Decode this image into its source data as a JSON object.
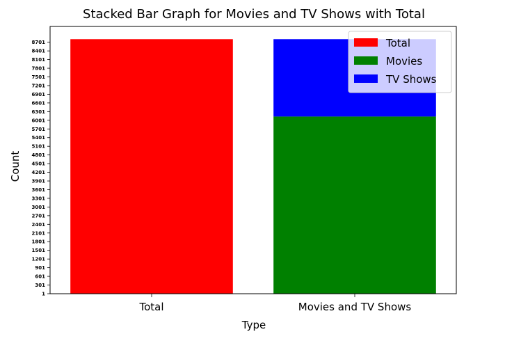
{
  "chart_data": {
    "type": "bar",
    "stacked": true,
    "title": "Stacked Bar Graph for Movies and TV Shows with Total",
    "xlabel": "Type",
    "ylabel": "Count",
    "categories": [
      "Total",
      "Movies and TV Shows"
    ],
    "series": [
      {
        "name": "Total",
        "color": "#ff0000",
        "values": [
          8807,
          0
        ]
      },
      {
        "name": "Movies",
        "color": "#008000",
        "values": [
          0,
          6131
        ]
      },
      {
        "name": "TV Shows",
        "color": "#0000ff",
        "values": [
          0,
          2676
        ]
      }
    ],
    "yticks": [
      "1",
      "301",
      "601",
      "901",
      "1201",
      "1501",
      "1801",
      "2101",
      "2401",
      "2701",
      "3001",
      "3301",
      "3601",
      "3901",
      "4201",
      "4501",
      "4801",
      "5101",
      "5401",
      "5701",
      "6001",
      "6301",
      "6601",
      "6901",
      "7201",
      "7501",
      "7801",
      "8101",
      "8401",
      "8701"
    ],
    "ylim": [
      1,
      9247
    ],
    "legend_position": "top-right",
    "grid": false
  }
}
